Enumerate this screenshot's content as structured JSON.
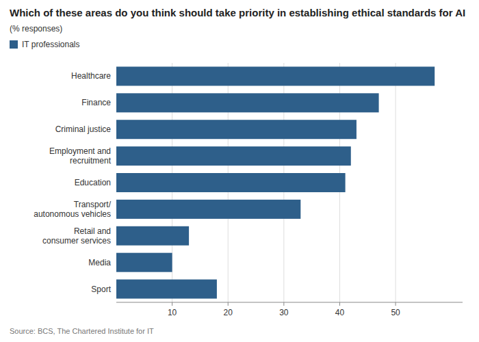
{
  "chart_data": {
    "type": "bar",
    "orientation": "horizontal",
    "title": "Which of these areas do you think should take priority in establishing ethical standards for AI",
    "subtitle": "(% responses)",
    "source": "Source: BCS, The Chartered Institute for IT",
    "categories": [
      "Healthcare",
      "Finance",
      "Criminal justice",
      "Employment and\nrecruitment",
      "Education",
      "Transport/\nautonomous vehicles",
      "Retail and\nconsumer services",
      "Media",
      "Sport"
    ],
    "series": [
      {
        "name": "IT professionals",
        "color": "#2e5f8a",
        "values": [
          57,
          47,
          43,
          42,
          41,
          33,
          13,
          10,
          18
        ]
      }
    ],
    "xlim": [
      0,
      62
    ],
    "xticks": [
      10,
      20,
      30,
      40,
      50
    ],
    "grid": true,
    "legend": "top-left"
  }
}
